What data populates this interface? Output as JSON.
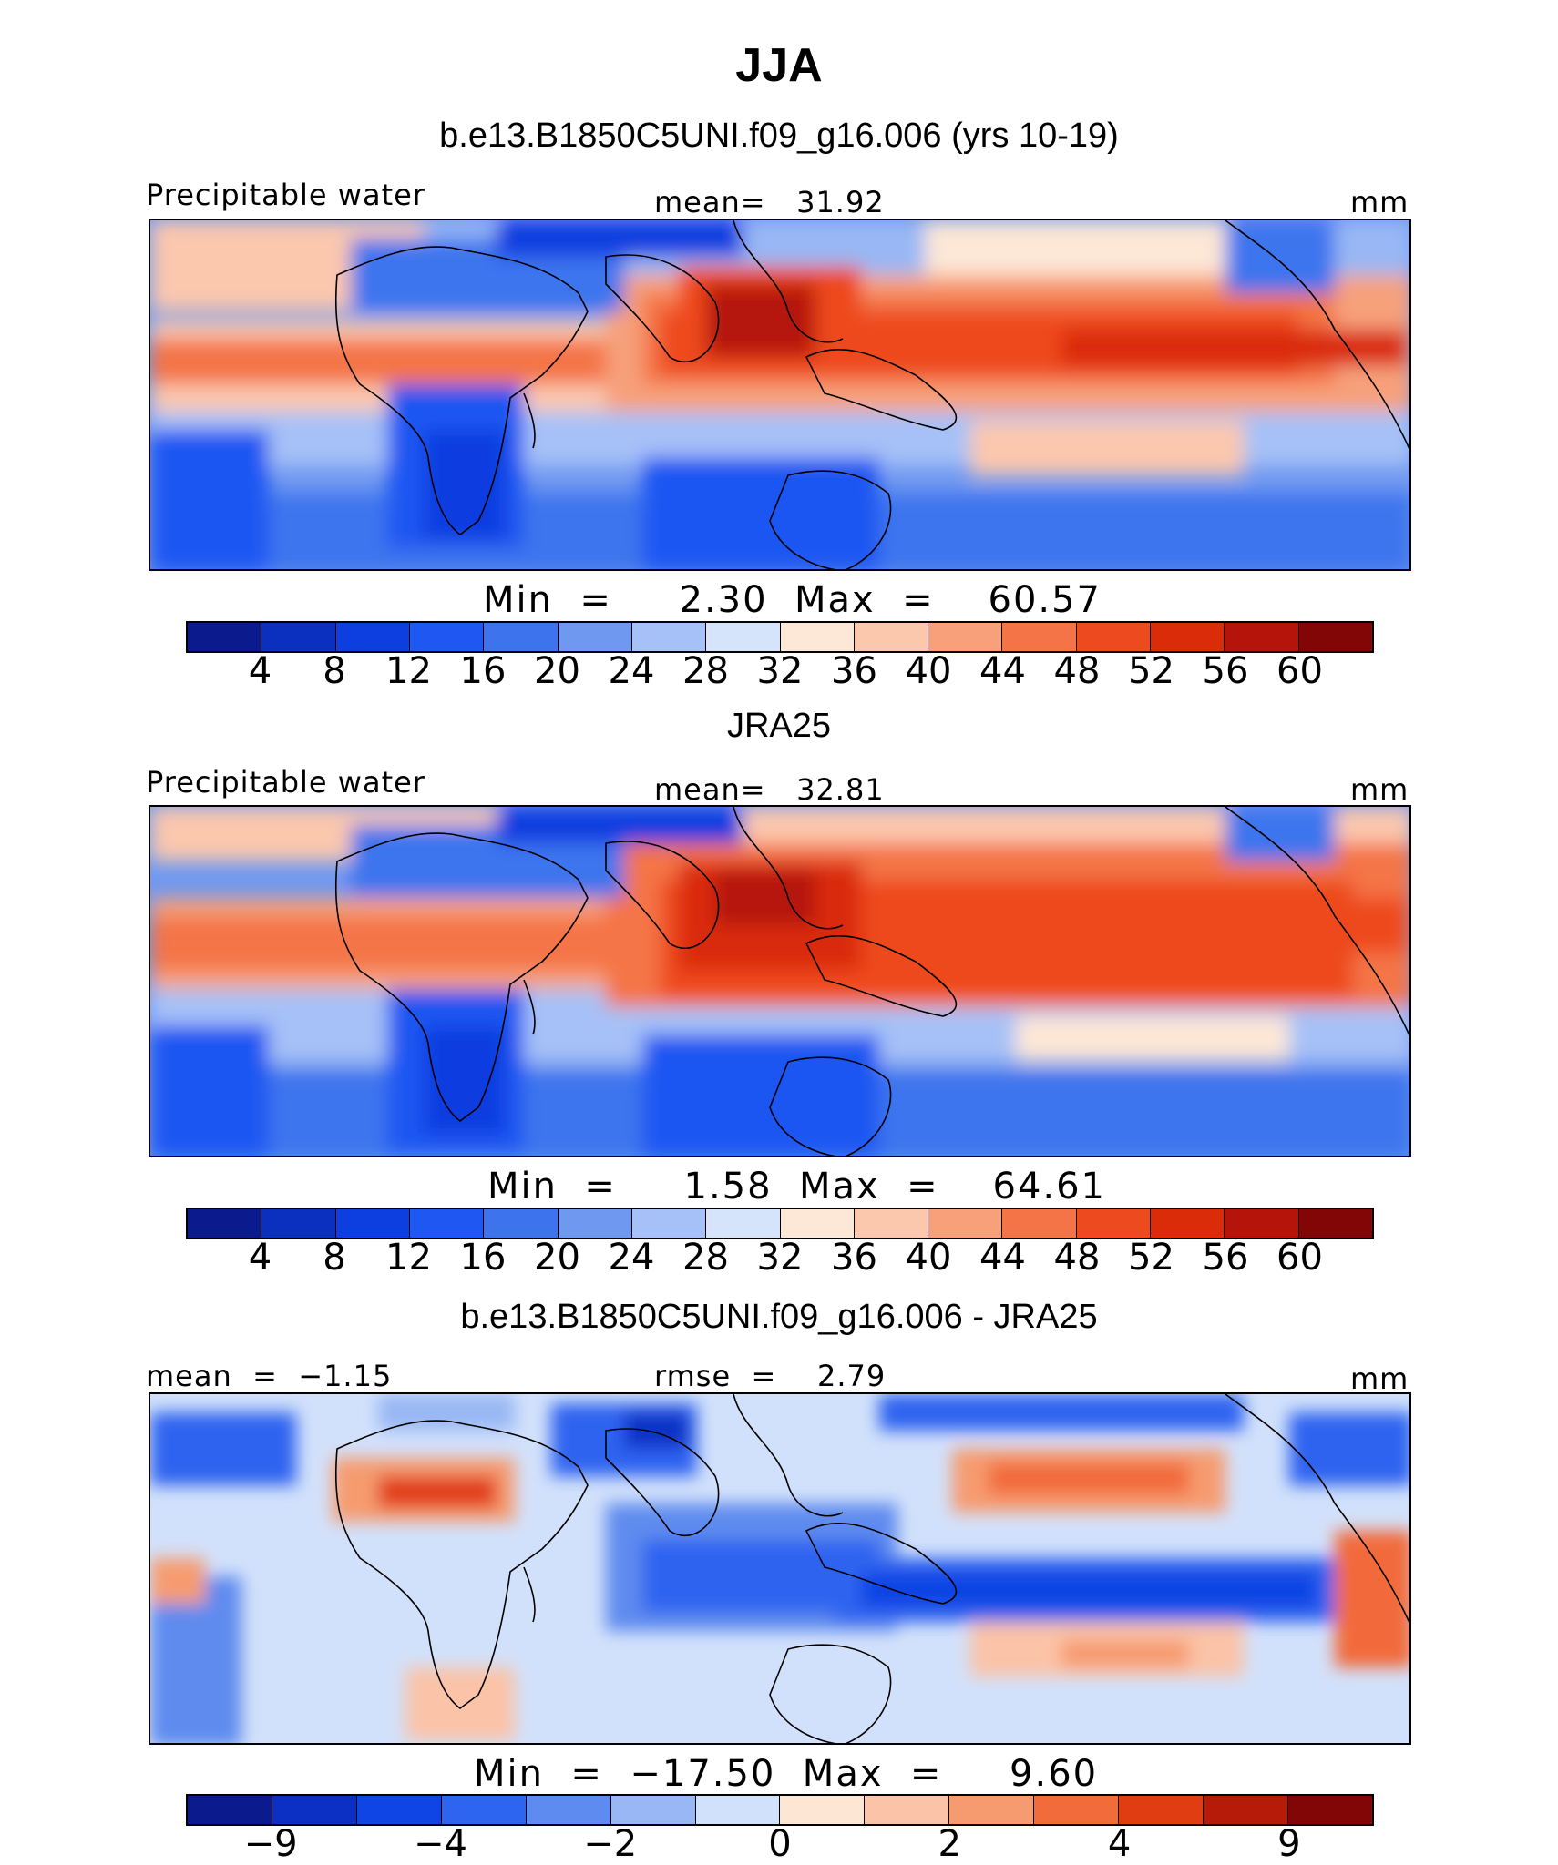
{
  "title": "JJA",
  "colors": {
    "seq": [
      "#0b1a8c",
      "#0b2fbf",
      "#0c3ee0",
      "#1f57f2",
      "#3d74ee",
      "#6f98f0",
      "#a6c1f7",
      "#d5e4fb",
      "#fde7d6",
      "#fbc7ad",
      "#f7a07a",
      "#f47447",
      "#ee4a1f",
      "#da2c09",
      "#b5140a",
      "#820606"
    ],
    "diff": [
      "#0b1a8c",
      "#0c30c4",
      "#0f45e4",
      "#2d64f0",
      "#5e8bef",
      "#98b7f4",
      "#d2e1fb",
      "#fde6d4",
      "#fbc3a7",
      "#f69b70",
      "#f26b3b",
      "#e13d12",
      "#b61a08",
      "#820606"
    ]
  },
  "panels": [
    {
      "title": "b.e13.B1850C5UNI.f09_g16.006 (yrs 10-19)",
      "left_label": "Precipitable water",
      "center_label": "mean=   31.92",
      "units": "mm",
      "minmax": "Min  =     2.30  Max  =    60.57",
      "ticks": [
        "4",
        "8",
        "12",
        "16",
        "20",
        "24",
        "28",
        "32",
        "36",
        "40",
        "44",
        "48",
        "52",
        "56",
        "60"
      ]
    },
    {
      "title": "JRA25",
      "left_label": "Precipitable water",
      "center_label": "mean=   32.81",
      "units": "mm",
      "minmax": "Min  =     1.58  Max  =    64.61",
      "ticks": [
        "4",
        "8",
        "12",
        "16",
        "20",
        "24",
        "28",
        "32",
        "36",
        "40",
        "44",
        "48",
        "52",
        "56",
        "60"
      ]
    },
    {
      "title": "b.e13.B1850C5UNI.f09_g16.006 - JRA25",
      "left_label": "mean  =  −1.15",
      "center_label": "rmse  =    2.79",
      "units": "mm",
      "minmax": "Min  =  −17.50  Max  =     9.60",
      "ticks": [
        "−9",
        "−4",
        "−2",
        "0",
        "2",
        "4",
        "9"
      ]
    }
  ]
}
